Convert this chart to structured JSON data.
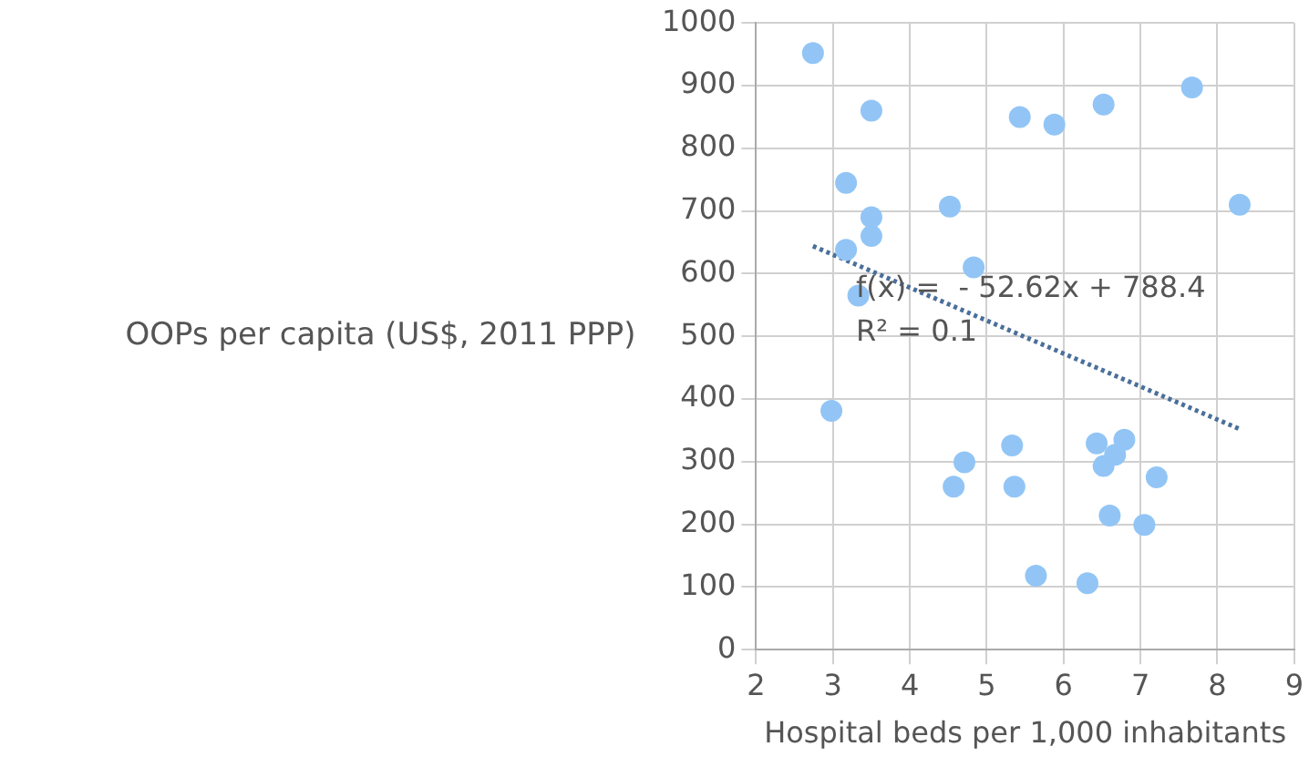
{
  "chart_data": {
    "type": "scatter",
    "xlabel": "Hospital beds per 1,000 inhabitants",
    "ylabel": "OOPs per capita (US$, 2011 PPP)",
    "xlim": [
      2,
      9
    ],
    "xticks": [
      2,
      3,
      4,
      5,
      6,
      7,
      8,
      9
    ],
    "ylim": [
      0,
      1000
    ],
    "yticks": [
      0,
      100,
      200,
      300,
      400,
      500,
      600,
      700,
      800,
      900,
      1000
    ],
    "grid": true,
    "legend": false,
    "marker": "circle",
    "annotations": [
      "f(x) =  - 52.62x + 788.4",
      "R² = 0.1"
    ],
    "series": [
      {
        "type": "scatter",
        "color": "#92c5f5",
        "x": [
          2.74,
          3.5,
          3.17,
          3.5,
          3.5,
          3.17,
          3.33,
          4.52,
          4.83,
          5.43,
          5.88,
          6.52,
          7.67,
          8.29,
          2.98,
          4.57,
          4.71,
          5.33,
          5.36,
          5.64,
          6.31,
          6.43,
          6.52,
          6.67,
          6.79,
          7.21,
          6.6,
          7.05
        ],
        "values": [
          952,
          860,
          745,
          690,
          660,
          638,
          565,
          707,
          610,
          850,
          838,
          870,
          897,
          710,
          381,
          260,
          299,
          326,
          260,
          118,
          106,
          329,
          293,
          311,
          335,
          275,
          214,
          199
        ]
      },
      {
        "type": "line",
        "color": "#4a6f9a",
        "line_style": "dotted",
        "marker": "none",
        "x": [
          2.74,
          8.29
        ],
        "values": [
          644,
          352
        ]
      }
    ]
  }
}
